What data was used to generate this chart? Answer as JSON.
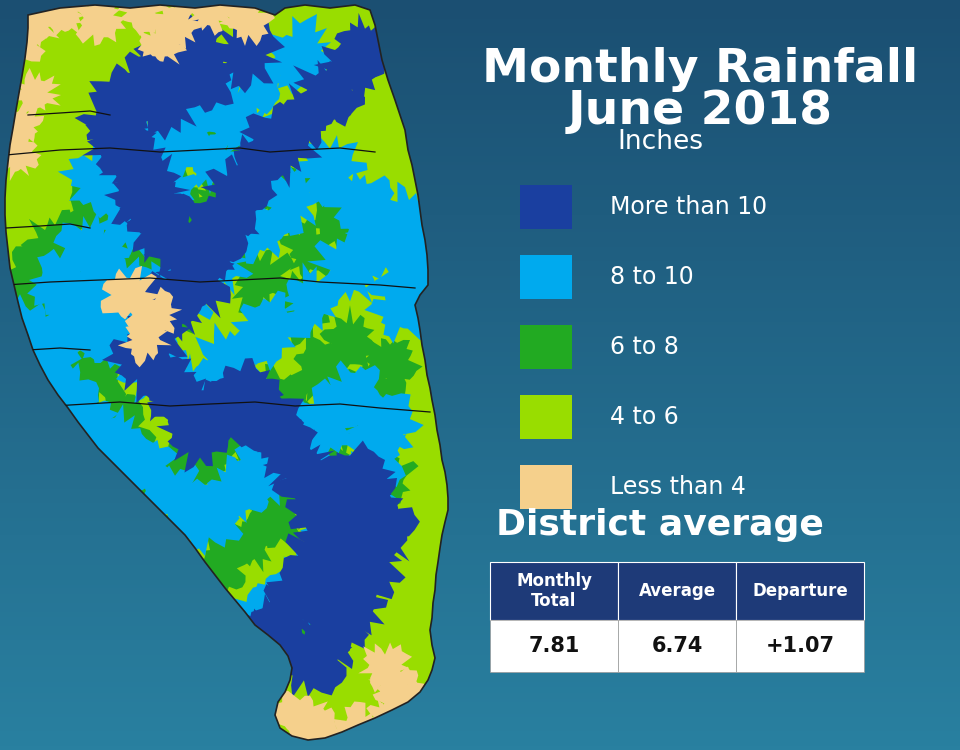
{
  "title_line1": "Monthly Rainfall",
  "title_line2": "June 2018",
  "title_fontsize": 34,
  "title_color": "#FFFFFF",
  "bg_color_top": "#1b4f72",
  "bg_color_bottom": "#2980a0",
  "legend_title": "Inches",
  "legend_items": [
    {
      "label": "More than 10",
      "color": "#1a3fa0"
    },
    {
      "label": "8 to 10",
      "color": "#00aaee"
    },
    {
      "label": "6 to 8",
      "color": "#22aa22"
    },
    {
      "label": "4 to 6",
      "color": "#99dd00"
    },
    {
      "label": "Less than 4",
      "color": "#f5d08c"
    }
  ],
  "legend_label_fontsize": 17,
  "legend_title_fontsize": 19,
  "district_avg_title": "District average",
  "district_avg_fontsize": 26,
  "table_headers": [
    "Monthly\nTotal",
    "Average",
    "Departure"
  ],
  "table_values": [
    "7.81",
    "6.74",
    "+1.07"
  ],
  "table_header_bg": "#1e3a78",
  "table_header_color": "#FFFFFF",
  "table_value_color": "#111111",
  "table_value_bg": "#FFFFFF",
  "map_colors": {
    "dark_blue": "#1a3fa0",
    "light_blue": "#00aaee",
    "dark_green": "#22aa22",
    "lime_green": "#99dd00",
    "tan": "#f5d08c",
    "outline": "#222222"
  }
}
